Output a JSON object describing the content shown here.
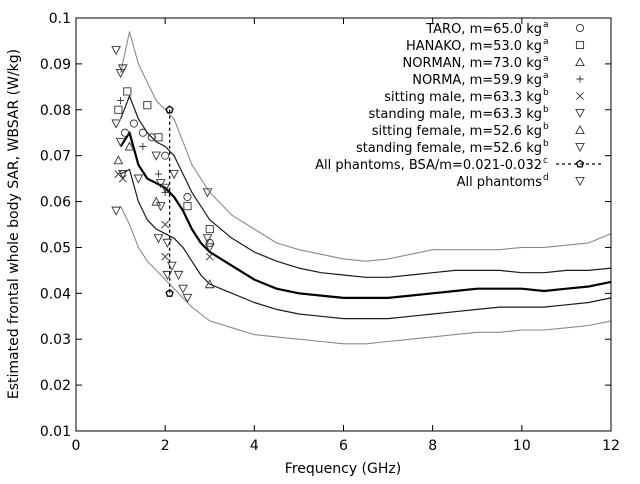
{
  "chart_data": {
    "type": "line",
    "xlabel": "Frequency (GHz)",
    "ylabel": "Estimated frontal whole body SAR, WBSAR (W/kg)",
    "xlim": [
      0,
      12
    ],
    "ylim": [
      0.01,
      0.1
    ],
    "xticks": [
      0,
      2,
      4,
      6,
      8,
      10,
      12
    ],
    "xtick_labels": [
      "0",
      "2",
      "4",
      "6",
      "8",
      "10",
      "12"
    ],
    "yticks": [
      0.01,
      0.02,
      0.03,
      0.04,
      0.05,
      0.06,
      0.07,
      0.08,
      0.09,
      0.1
    ],
    "ytick_labels": [
      "0.01",
      "0.02",
      "0.03",
      "0.04",
      "0.05",
      "0.06",
      "0.07",
      "0.08",
      "0.09",
      "0.1"
    ],
    "grid": false,
    "legend_position": "top-right",
    "legend": [
      {
        "text": "TARO, m=65.0 kg",
        "sup": "a",
        "marker": "circle"
      },
      {
        "text": "HANAKO, m=53.0 kg",
        "sup": "a",
        "marker": "square"
      },
      {
        "text": "NORMAN, m=73.0 kg",
        "sup": "a",
        "marker": "triangle-up"
      },
      {
        "text": "NORMA, m=59.9 kg",
        "sup": "a",
        "marker": "plus"
      },
      {
        "text": "sitting male, m=63.3 kg",
        "sup": "b",
        "marker": "cross"
      },
      {
        "text": "standing male, m=63.3 kg",
        "sup": "b",
        "marker": "triangle-down"
      },
      {
        "text": "sitting female, m=52.6 kg",
        "sup": "b",
        "marker": "triangle-up"
      },
      {
        "text": "standing female, m=52.6 kg",
        "sup": "b",
        "marker": "triangle-down"
      },
      {
        "text": "All phantoms, BSA/m=0.021-0.032",
        "sup": "c",
        "marker": "pentagon-dashed"
      },
      {
        "text": "All phantoms",
        "sup": "d",
        "marker": "triangle-down"
      }
    ],
    "curves": [
      {
        "role": "mean",
        "x": [
          1.0,
          1.2,
          1.4,
          1.6,
          1.8,
          2.0,
          2.2,
          2.4,
          2.6,
          2.8,
          3.0,
          3.5,
          4.0,
          4.5,
          5.0,
          5.5,
          6.0,
          6.5,
          7.0,
          7.5,
          8.0,
          8.5,
          9.0,
          9.5,
          10.0,
          10.5,
          11.0,
          11.5,
          12.0
        ],
        "y": [
          0.072,
          0.075,
          0.068,
          0.065,
          0.064,
          0.063,
          0.061,
          0.058,
          0.054,
          0.051,
          0.049,
          0.046,
          0.043,
          0.041,
          0.04,
          0.0395,
          0.039,
          0.039,
          0.039,
          0.0395,
          0.04,
          0.0405,
          0.041,
          0.041,
          0.041,
          0.0405,
          0.041,
          0.0415,
          0.0425
        ]
      },
      {
        "role": "upper-1",
        "x": [
          1.0,
          1.2,
          1.4,
          1.6,
          1.8,
          2.0,
          2.2,
          2.4,
          2.6,
          2.8,
          3.0,
          3.5,
          4.0,
          4.5,
          5.0,
          5.5,
          6.0,
          6.5,
          7.0,
          7.5,
          8.0,
          8.5,
          9.0,
          9.5,
          10.0,
          10.5,
          11.0,
          11.5,
          12.0
        ],
        "y": [
          0.078,
          0.083,
          0.078,
          0.075,
          0.073,
          0.072,
          0.07,
          0.066,
          0.062,
          0.059,
          0.056,
          0.052,
          0.049,
          0.047,
          0.0455,
          0.0445,
          0.044,
          0.0435,
          0.0435,
          0.044,
          0.0445,
          0.045,
          0.045,
          0.045,
          0.0445,
          0.0445,
          0.045,
          0.045,
          0.0455
        ]
      },
      {
        "role": "lower-1",
        "x": [
          1.0,
          1.2,
          1.4,
          1.6,
          1.8,
          2.0,
          2.2,
          2.4,
          2.6,
          2.8,
          3.0,
          3.5,
          4.0,
          4.5,
          5.0,
          5.5,
          6.0,
          6.5,
          7.0,
          7.5,
          8.0,
          8.5,
          9.0,
          9.5,
          10.0,
          10.5,
          11.0,
          11.5,
          12.0
        ],
        "y": [
          0.066,
          0.067,
          0.06,
          0.056,
          0.054,
          0.053,
          0.052,
          0.05,
          0.047,
          0.044,
          0.042,
          0.04,
          0.038,
          0.0365,
          0.0355,
          0.035,
          0.0345,
          0.0345,
          0.0345,
          0.035,
          0.0355,
          0.036,
          0.0365,
          0.037,
          0.037,
          0.037,
          0.0375,
          0.038,
          0.039
        ]
      },
      {
        "role": "upper-2",
        "x": [
          1.0,
          1.2,
          1.4,
          1.6,
          1.8,
          2.0,
          2.2,
          2.4,
          2.6,
          2.8,
          3.0,
          3.5,
          4.0,
          4.5,
          5.0,
          5.5,
          6.0,
          6.5,
          7.0,
          7.5,
          8.0,
          8.5,
          9.0,
          9.5,
          10.0,
          10.5,
          11.0,
          11.5,
          12.0
        ],
        "y": [
          0.088,
          0.097,
          0.09,
          0.086,
          0.082,
          0.08,
          0.078,
          0.073,
          0.068,
          0.065,
          0.062,
          0.057,
          0.054,
          0.051,
          0.0495,
          0.0485,
          0.0475,
          0.047,
          0.0475,
          0.0485,
          0.0495,
          0.0495,
          0.0495,
          0.0495,
          0.05,
          0.05,
          0.0505,
          0.051,
          0.053
        ]
      },
      {
        "role": "lower-2",
        "x": [
          1.0,
          1.2,
          1.4,
          1.6,
          1.8,
          2.0,
          2.2,
          2.4,
          2.6,
          2.8,
          3.0,
          3.5,
          4.0,
          4.5,
          5.0,
          5.5,
          6.0,
          6.5,
          7.0,
          7.5,
          8.0,
          8.5,
          9.0,
          9.5,
          10.0,
          10.5,
          11.0,
          11.5,
          12.0
        ],
        "y": [
          0.059,
          0.055,
          0.05,
          0.047,
          0.045,
          0.043,
          0.041,
          0.039,
          0.037,
          0.0355,
          0.034,
          0.0325,
          0.031,
          0.0305,
          0.03,
          0.0295,
          0.029,
          0.029,
          0.0295,
          0.03,
          0.0305,
          0.031,
          0.0315,
          0.0315,
          0.032,
          0.032,
          0.0325,
          0.033,
          0.034
        ]
      }
    ],
    "markers": [
      {
        "symbol": "circle",
        "x": 1.1,
        "y": 0.075
      },
      {
        "symbol": "circle",
        "x": 1.3,
        "y": 0.077
      },
      {
        "symbol": "circle",
        "x": 1.5,
        "y": 0.075
      },
      {
        "symbol": "circle",
        "x": 1.7,
        "y": 0.074
      },
      {
        "symbol": "circle",
        "x": 2.0,
        "y": 0.07
      },
      {
        "symbol": "circle",
        "x": 2.5,
        "y": 0.061
      },
      {
        "symbol": "circle",
        "x": 3.0,
        "y": 0.051
      },
      {
        "symbol": "square",
        "x": 0.95,
        "y": 0.08
      },
      {
        "symbol": "square",
        "x": 1.15,
        "y": 0.084
      },
      {
        "symbol": "square",
        "x": 1.6,
        "y": 0.081
      },
      {
        "symbol": "square",
        "x": 1.85,
        "y": 0.074
      },
      {
        "symbol": "square",
        "x": 2.5,
        "y": 0.059
      },
      {
        "symbol": "square",
        "x": 3.0,
        "y": 0.054
      },
      {
        "symbol": "triangle-up",
        "x": 0.95,
        "y": 0.069
      },
      {
        "symbol": "triangle-up",
        "x": 1.2,
        "y": 0.072
      },
      {
        "symbol": "triangle-up",
        "x": 1.8,
        "y": 0.06
      },
      {
        "symbol": "triangle-up",
        "x": 3.0,
        "y": 0.042
      },
      {
        "symbol": "plus",
        "x": 1.0,
        "y": 0.082
      },
      {
        "symbol": "plus",
        "x": 1.5,
        "y": 0.072
      },
      {
        "symbol": "plus",
        "x": 1.85,
        "y": 0.066
      },
      {
        "symbol": "plus",
        "x": 2.0,
        "y": 0.062
      },
      {
        "symbol": "cross",
        "x": 0.95,
        "y": 0.066
      },
      {
        "symbol": "cross",
        "x": 1.05,
        "y": 0.065
      },
      {
        "symbol": "cross",
        "x": 2.0,
        "y": 0.055
      },
      {
        "symbol": "cross",
        "x": 2.0,
        "y": 0.048
      },
      {
        "symbol": "cross",
        "x": 3.0,
        "y": 0.048
      },
      {
        "symbol": "triangle-down",
        "x": 0.9,
        "y": 0.093
      },
      {
        "symbol": "triangle-down",
        "x": 1.0,
        "y": 0.088
      },
      {
        "symbol": "triangle-down",
        "x": 1.05,
        "y": 0.089
      },
      {
        "symbol": "triangle-down",
        "x": 0.9,
        "y": 0.077
      },
      {
        "symbol": "triangle-down",
        "x": 1.0,
        "y": 0.073
      },
      {
        "symbol": "triangle-down",
        "x": 0.9,
        "y": 0.058
      },
      {
        "symbol": "triangle-down",
        "x": 1.05,
        "y": 0.066
      },
      {
        "symbol": "triangle-down",
        "x": 1.4,
        "y": 0.065
      },
      {
        "symbol": "triangle-down",
        "x": 1.8,
        "y": 0.07
      },
      {
        "symbol": "triangle-down",
        "x": 1.9,
        "y": 0.064
      },
      {
        "symbol": "triangle-down",
        "x": 2.0,
        "y": 0.063
      },
      {
        "symbol": "triangle-down",
        "x": 2.2,
        "y": 0.066
      },
      {
        "symbol": "triangle-down",
        "x": 1.9,
        "y": 0.059
      },
      {
        "symbol": "triangle-down",
        "x": 1.85,
        "y": 0.052
      },
      {
        "symbol": "triangle-down",
        "x": 2.05,
        "y": 0.051
      },
      {
        "symbol": "triangle-down",
        "x": 2.15,
        "y": 0.046
      },
      {
        "symbol": "triangle-down",
        "x": 2.05,
        "y": 0.044
      },
      {
        "symbol": "triangle-down",
        "x": 2.3,
        "y": 0.044
      },
      {
        "symbol": "triangle-down",
        "x": 2.4,
        "y": 0.041
      },
      {
        "symbol": "triangle-down",
        "x": 2.5,
        "y": 0.039
      },
      {
        "symbol": "triangle-down",
        "x": 2.95,
        "y": 0.062
      },
      {
        "symbol": "triangle-down",
        "x": 2.95,
        "y": 0.052
      },
      {
        "symbol": "triangle-down",
        "x": 3.0,
        "y": 0.05
      }
    ],
    "bsa_range": {
      "x": 2.1,
      "y_top": 0.08,
      "y_bottom": 0.04
    }
  }
}
